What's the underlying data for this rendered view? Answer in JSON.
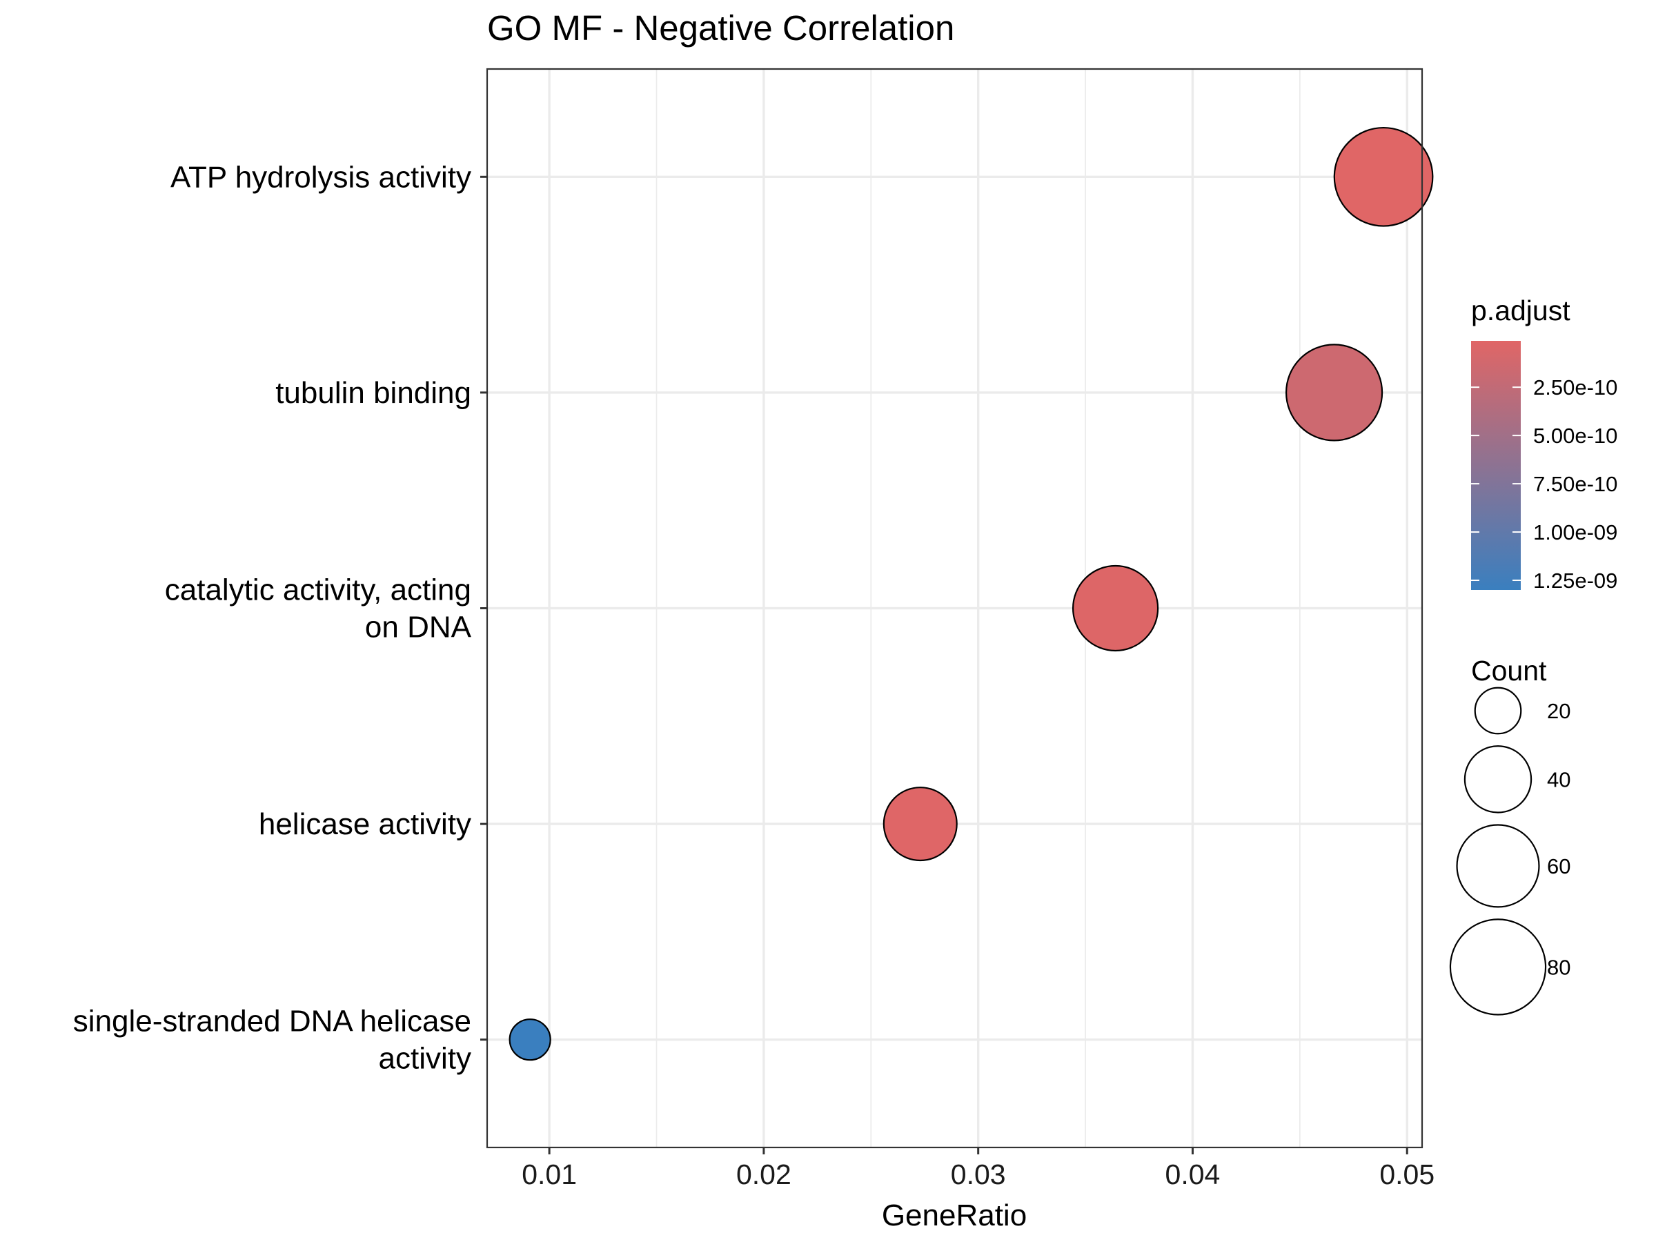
{
  "chart_data": {
    "type": "scatter",
    "title": "GO MF - Negative Correlation",
    "xlabel": "GeneRatio",
    "ylabel": "",
    "xlim": [
      0.0071,
      0.0507
    ],
    "x_ticks": [
      "0.01",
      "0.02",
      "0.03",
      "0.04",
      "0.05"
    ],
    "x_tick_values": [
      0.01,
      0.02,
      0.03,
      0.04,
      0.05
    ],
    "grid": true,
    "categories": [
      "ATP hydrolysis activity",
      "tubulin binding",
      "catalytic activity, acting on DNA",
      "helicase activity",
      "single-stranded DNA helicase activity"
    ],
    "category_lines": [
      [
        "ATP hydrolysis activity"
      ],
      [
        "tubulin binding"
      ],
      [
        "catalytic activity, acting",
        "on DNA"
      ],
      [
        "helicase activity"
      ],
      [
        "single-stranded DNA helicase",
        "activity"
      ]
    ],
    "points": [
      {
        "term": "ATP hydrolysis activity",
        "gene_ratio": 0.0489,
        "count": 85,
        "p_adjust": 1e-11
      },
      {
        "term": "tubulin binding",
        "gene_ratio": 0.0466,
        "count": 81,
        "p_adjust": 1.6e-10
      },
      {
        "term": "catalytic activity, acting on DNA",
        "gene_ratio": 0.0364,
        "count": 64,
        "p_adjust": 3e-11
      },
      {
        "term": "helicase activity",
        "gene_ratio": 0.0273,
        "count": 48,
        "p_adjust": 2e-11
      },
      {
        "term": "single-stranded DNA helicase activity",
        "gene_ratio": 0.0091,
        "count": 16,
        "p_adjust": 1.3e-09
      }
    ],
    "legend": {
      "placement": "right",
      "color": {
        "title": "p.adjust",
        "ticks": [
          "2.50e-10",
          "5.00e-10",
          "7.50e-10",
          "1.00e-09",
          "1.25e-09"
        ],
        "tick_values": [
          2.5e-10,
          5e-10,
          7.5e-10,
          1e-09,
          1.25e-09
        ],
        "range": [
          1e-11,
          1.3e-09
        ],
        "low_color": "#e06666",
        "high_color": "#3a7fbf"
      },
      "size": {
        "title": "Count",
        "ticks": [
          "20",
          "40",
          "60",
          "80"
        ],
        "tick_values": [
          20,
          40,
          60,
          80
        ]
      }
    }
  }
}
